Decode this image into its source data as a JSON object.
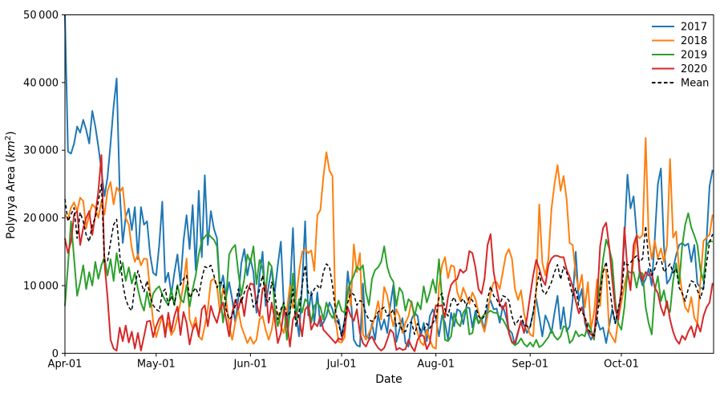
{
  "figure": {
    "background": "#ffffff",
    "ylabel_parts": {
      "pre": "Polynya Area (",
      "math": "km",
      "sup": "2",
      "post": ")"
    }
  },
  "chart_data": {
    "type": "line",
    "title": "",
    "xlabel": "Date",
    "ylabel": "Polynya Area (km²)",
    "grid": false,
    "x_axis": {
      "unit": "days since Apr-01",
      "start": "Apr-01",
      "end": "Oct-31",
      "n_days": 214,
      "tick_days": [
        0,
        30,
        61,
        91,
        122,
        153,
        183
      ],
      "tick_labels": [
        "Apr-01",
        "May-01",
        "Jun-01",
        "Jul-01",
        "Aug-01",
        "Sep-01",
        "Oct-01"
      ]
    },
    "y_axis": {
      "lim": [
        0,
        50000
      ],
      "ticks": [
        0,
        10000,
        20000,
        30000,
        40000,
        50000
      ],
      "tick_labels": [
        "0",
        "10 000",
        "20 000",
        "30 000",
        "40 000",
        "50 000"
      ]
    },
    "legend": {
      "position": "upper right",
      "frame": false,
      "entries": [
        "2017",
        "2018",
        "2019",
        "2020",
        "Mean"
      ]
    },
    "series": [
      {
        "name": "2017",
        "color": "#1f77b4",
        "style": "solid",
        "values": [
          50000,
          29800,
          29500,
          31000,
          33500,
          32600,
          34500,
          33000,
          31000,
          35800,
          33500,
          30500,
          27000,
          23200,
          26000,
          31000,
          36500,
          40600,
          24000,
          16300,
          20200,
          21400,
          18200,
          21600,
          13900,
          21600,
          19000,
          19500,
          14600,
          11900,
          11500,
          16000,
          22400,
          10500,
          11900,
          8700,
          11900,
          14600,
          10300,
          16600,
          20400,
          15400,
          21900,
          12300,
          24000,
          14200,
          26300,
          16000,
          21000,
          18400,
          17000,
          9500,
          11500,
          8300,
          10500,
          8000,
          4500,
          8000,
          13300,
          15400,
          11500,
          14000,
          12000,
          6000,
          11400,
          15000,
          7000,
          10000,
          12700,
          9000,
          13000,
          16500,
          7000,
          3900,
          9000,
          18500,
          6000,
          2500,
          10000,
          19500,
          5600,
          9100,
          4500,
          9000,
          4000,
          4500,
          5500,
          7500,
          6500,
          4500,
          5000,
          2500,
          5000,
          12100,
          8300,
          2000,
          1200,
          1000,
          10300,
          2500,
          2200,
          4400,
          2000,
          5800,
          3500,
          5000,
          3000,
          7100,
          10100,
          1700,
          3500,
          5200,
          1500,
          1000,
          5000,
          6000,
          5500,
          2500,
          4500,
          1800,
          5500,
          6500,
          5100,
          2500,
          5600,
          4500,
          2000,
          6000,
          4000,
          6500,
          6200,
          4300,
          6800,
          6700,
          3800,
          6300,
          4400,
          5000,
          3500,
          7000,
          7800,
          6500,
          6600,
          4500,
          7000,
          5500,
          3500,
          3000,
          1200,
          3000,
          4800,
          4200,
          3000,
          4000,
          6000,
          8100,
          5400,
          2500,
          5600,
          4500,
          3000,
          6000,
          8500,
          3600,
          6800,
          3200,
          4000,
          8000,
          15000,
          7700,
          9500,
          4500,
          3000,
          2000,
          3000,
          5000,
          3500,
          3800,
          1500,
          4000,
          6500,
          4500,
          6000,
          9500,
          17000,
          26400,
          21400,
          23200,
          17800,
          11500,
          10000,
          11000,
          12500,
          10000,
          17000,
          25000,
          27300,
          15800,
          10300,
          11000,
          12500,
          14500,
          16000,
          16300,
          15900,
          16200,
          13500,
          16000,
          10300,
          9700,
          9500,
          16600,
          24700,
          27100
        ]
      },
      {
        "name": "2018",
        "color": "#ff7f0e",
        "style": "solid",
        "values": [
          20500,
          19800,
          21500,
          22300,
          21000,
          23000,
          22500,
          18500,
          20500,
          22000,
          21500,
          20000,
          22500,
          20500,
          24000,
          25300,
          22000,
          24500,
          23800,
          24500,
          20000,
          19000,
          15500,
          13500,
          14600,
          13000,
          14000,
          13900,
          9100,
          4700,
          2400,
          4000,
          5600,
          3400,
          4500,
          2700,
          3500,
          5300,
          7500,
          10300,
          14000,
          5000,
          3700,
          5300,
          2500,
          2000,
          4000,
          6500,
          10700,
          11000,
          10000,
          6000,
          9700,
          8000,
          4000,
          2000,
          4500,
          6400,
          4000,
          2800,
          1500,
          2400,
          1400,
          2000,
          5000,
          5500,
          3500,
          2000,
          3500,
          6500,
          6000,
          4000,
          3000,
          6300,
          10000,
          6700,
          8000,
          12000,
          15000,
          15400,
          14800,
          15200,
          12200,
          20400,
          21200,
          26000,
          29700,
          27000,
          26200,
          5000,
          1700,
          1600,
          2400,
          9900,
          7000,
          16100,
          12000,
          14800,
          2800,
          2000,
          3000,
          4000,
          5500,
          7700,
          5000,
          9800,
          8500,
          6000,
          4000,
          6500,
          5500,
          3000,
          4500,
          5500,
          7700,
          5000,
          3000,
          1600,
          1200,
          3500,
          2000,
          900,
          700,
          9900,
          13000,
          14200,
          11100,
          13000,
          12800,
          9100,
          7800,
          9700,
          8500,
          7300,
          9000,
          8000,
          6000,
          4500,
          3200,
          5500,
          9000,
          10500,
          10500,
          9500,
          12000,
          14500,
          15400,
          14000,
          9500,
          7900,
          9300,
          5900,
          4000,
          2800,
          2500,
          9500,
          22000,
          13400,
          11500,
          14000,
          21300,
          25000,
          27800,
          24000,
          26200,
          22800,
          16300,
          16000,
          11600,
          9400,
          11600,
          6800,
          10500,
          3600,
          6000,
          10900,
          7000,
          12600,
          12300,
          3200,
          2400,
          1600,
          5200,
          7500,
          10000,
          12000,
          9700,
          14000,
          17500,
          17000,
          17500,
          31800,
          17100,
          13900,
          16600,
          14000,
          15500,
          13500,
          16000,
          28700,
          17100,
          18000,
          12300,
          8900,
          6800,
          6100,
          8300,
          5200,
          4400,
          10700,
          16600,
          17100,
          17500,
          20500
        ]
      },
      {
        "name": "2019",
        "color": "#2ca02c",
        "style": "solid",
        "values": [
          7000,
          13000,
          19500,
          14000,
          8500,
          10500,
          13000,
          9500,
          12000,
          10000,
          13500,
          11000,
          13000,
          14200,
          11500,
          13900,
          10700,
          14800,
          11900,
          13400,
          10700,
          12700,
          10300,
          11900,
          9500,
          7500,
          6300,
          9100,
          6800,
          8800,
          9500,
          9900,
          8700,
          7800,
          7100,
          9500,
          7100,
          10100,
          8000,
          7500,
          10100,
          6900,
          9500,
          11500,
          14600,
          16600,
          17200,
          17700,
          17200,
          16800,
          15800,
          9100,
          4550,
          8000,
          14600,
          15500,
          16000,
          12000,
          8600,
          11000,
          14600,
          13400,
          15800,
          10200,
          13800,
          12500,
          9000,
          13500,
          12800,
          6500,
          4000,
          6000,
          7500,
          2000,
          6000,
          11800,
          5000,
          8000,
          6000,
          8000,
          7500,
          4500,
          7000,
          7500,
          6800,
          5000,
          7500,
          6000,
          5200,
          6300,
          7800,
          6300,
          6000,
          9100,
          10500,
          11500,
          12800,
          12300,
          13000,
          9000,
          7100,
          11000,
          12300,
          12700,
          13500,
          15800,
          12800,
          11300,
          10600,
          7000,
          9700,
          9000,
          6300,
          8000,
          7500,
          5500,
          7500,
          6500,
          9900,
          7500,
          9000,
          10900,
          8900,
          13900,
          8000,
          2000,
          1800,
          2500,
          5900,
          4500,
          4000,
          6000,
          6700,
          2800,
          3000,
          5500,
          4500,
          5200,
          5800,
          6000,
          6300,
          6000,
          6000,
          5300,
          5000,
          4200,
          3200,
          1600,
          1200,
          1500,
          2200,
          1400,
          1000,
          1600,
          1000,
          2000,
          900,
          1200,
          1800,
          2400,
          3500,
          2500,
          2000,
          2500,
          4000,
          3800,
          1500,
          2000,
          3300,
          2500,
          2800,
          2500,
          4500,
          3500,
          2000,
          6800,
          10000,
          13900,
          16800,
          15500,
          13600,
          7700,
          4400,
          3500,
          6800,
          12200,
          11900,
          12000,
          9700,
          12000,
          11800,
          6800,
          4400,
          2800,
          9300,
          11400,
          7700,
          9300,
          6800,
          6100,
          10700,
          13300,
          10300,
          15800,
          19000,
          20700,
          18600,
          17400,
          16000,
          12300,
          10700,
          15800,
          16600,
          16500
        ]
      },
      {
        "name": "2020",
        "color": "#d62728",
        "style": "solid",
        "values": [
          17000,
          14800,
          16500,
          20500,
          21000,
          16000,
          18500,
          20000,
          21000,
          17500,
          20500,
          24000,
          29300,
          13400,
          8300,
          2000,
          700,
          400,
          3800,
          1800,
          4100,
          1600,
          3200,
          700,
          3000,
          400,
          2500,
          4700,
          4800,
          2400,
          4000,
          5100,
          5600,
          2400,
          6000,
          3200,
          5500,
          6900,
          2700,
          6100,
          4500,
          1300,
          3500,
          4400,
          2500,
          6500,
          7100,
          4000,
          7000,
          5500,
          4500,
          6500,
          7500,
          5000,
          2500,
          6000,
          7900,
          6500,
          8200,
          5500,
          9000,
          10300,
          10200,
          7500,
          5500,
          9500,
          10000,
          4500,
          7500,
          5000,
          1500,
          3000,
          6500,
          5000,
          1000,
          5000,
          6000,
          5500,
          2500,
          6500,
          7000,
          3500,
          4500,
          4000,
          5500,
          3500,
          3000,
          2500,
          2000,
          1500,
          2200,
          2000,
          3500,
          6800,
          5500,
          4800,
          6500,
          3000,
          1500,
          1000,
          2000,
          2500,
          1500,
          800,
          400,
          800,
          2000,
          3500,
          3000,
          500,
          800,
          500,
          600,
          2000,
          1000,
          300,
          2000,
          2800,
          2500,
          600,
          1500,
          5000,
          7100,
          7000,
          7100,
          5300,
          8300,
          10100,
          10700,
          11000,
          12400,
          11900,
          12300,
          15100,
          14800,
          12700,
          9500,
          8800,
          11000,
          16000,
          17600,
          12000,
          9500,
          7300,
          6500,
          7500,
          3000,
          1700,
          1500,
          3200,
          4700,
          3000,
          5300,
          8500,
          11500,
          13800,
          12500,
          10900,
          10100,
          13000,
          14000,
          14400,
          14400,
          14200,
          14200,
          12400,
          11300,
          9800,
          7700,
          5900,
          6800,
          5000,
          3200,
          2800,
          2400,
          7700,
          15800,
          18500,
          19300,
          15800,
          10900,
          6500,
          5000,
          9500,
          18600,
          12300,
          9300,
          16000,
          17400,
          12300,
          10700,
          12000,
          11500,
          11800,
          9700,
          8900,
          6800,
          5600,
          7700,
          5000,
          3200,
          2000,
          1400,
          2600,
          2000,
          3200,
          4000,
          2400,
          4400,
          3200,
          5500,
          6800,
          7500,
          10400
        ]
      },
      {
        "name": "Mean",
        "color": "#000000",
        "style": "dashed",
        "values": [
          22800,
          19500,
          20500,
          21500,
          17000,
          20800,
          19500,
          17500,
          16500,
          19000,
          20000,
          22500,
          25000,
          13500,
          13600,
          16400,
          19000,
          19800,
          14600,
          10300,
          8000,
          6800,
          6300,
          10000,
          12200,
          10500,
          9100,
          10700,
          8500,
          7100,
          6500,
          6200,
          9000,
          9500,
          7100,
          8500,
          7200,
          10000,
          10100,
          11000,
          11500,
          8200,
          9000,
          9700,
          8500,
          11000,
          12800,
          12600,
          13000,
          11500,
          9700,
          10500,
          10300,
          6500,
          5000,
          5500,
          7000,
          9500,
          7500,
          9000,
          10000,
          9500,
          6800,
          7500,
          9500,
          11500,
          8000,
          7500,
          10500,
          9000,
          5000,
          6500,
          7500,
          5500,
          6000,
          9500,
          4000,
          6000,
          10000,
          13000,
          9000,
          8500,
          9500,
          10000,
          9500,
          12000,
          13200,
          12800,
          10000,
          6300,
          4300,
          2600,
          4800,
          7500,
          8900,
          8700,
          7100,
          7800,
          7500,
          5800,
          5000,
          4700,
          5200,
          6100,
          6500,
          6800,
          5500,
          5800,
          6500,
          4000,
          4500,
          3300,
          3200,
          4500,
          4600,
          2800,
          4400,
          3400,
          3500,
          4400,
          3700,
          4500,
          5200,
          8200,
          8900,
          6500,
          5500,
          7500,
          8300,
          7100,
          7500,
          8100,
          7000,
          8300,
          7800,
          7000,
          5500,
          5000,
          5500,
          8000,
          9900,
          8500,
          8000,
          7000,
          8500,
          8300,
          7800,
          5500,
          4200,
          4800,
          5500,
          4300,
          4000,
          3800,
          6000,
          9500,
          11900,
          9300,
          8700,
          9500,
          10500,
          12000,
          13100,
          10900,
          12800,
          12000,
          10400,
          8500,
          9700,
          6800,
          6100,
          5500,
          3600,
          3000,
          2600,
          5200,
          8900,
          12000,
          13500,
          10300,
          6800,
          4400,
          6800,
          8500,
          13500,
          13000,
          13400,
          14000,
          14400,
          13500,
          14000,
          18800,
          13900,
          11500,
          12500,
          13900,
          14000,
          12000,
          12600,
          13200,
          11900,
          12500,
          9700,
          8900,
          7700,
          9500,
          10700,
          10500,
          9300,
          8100,
          9700,
          13300,
          16400,
          17600
        ]
      }
    ]
  }
}
